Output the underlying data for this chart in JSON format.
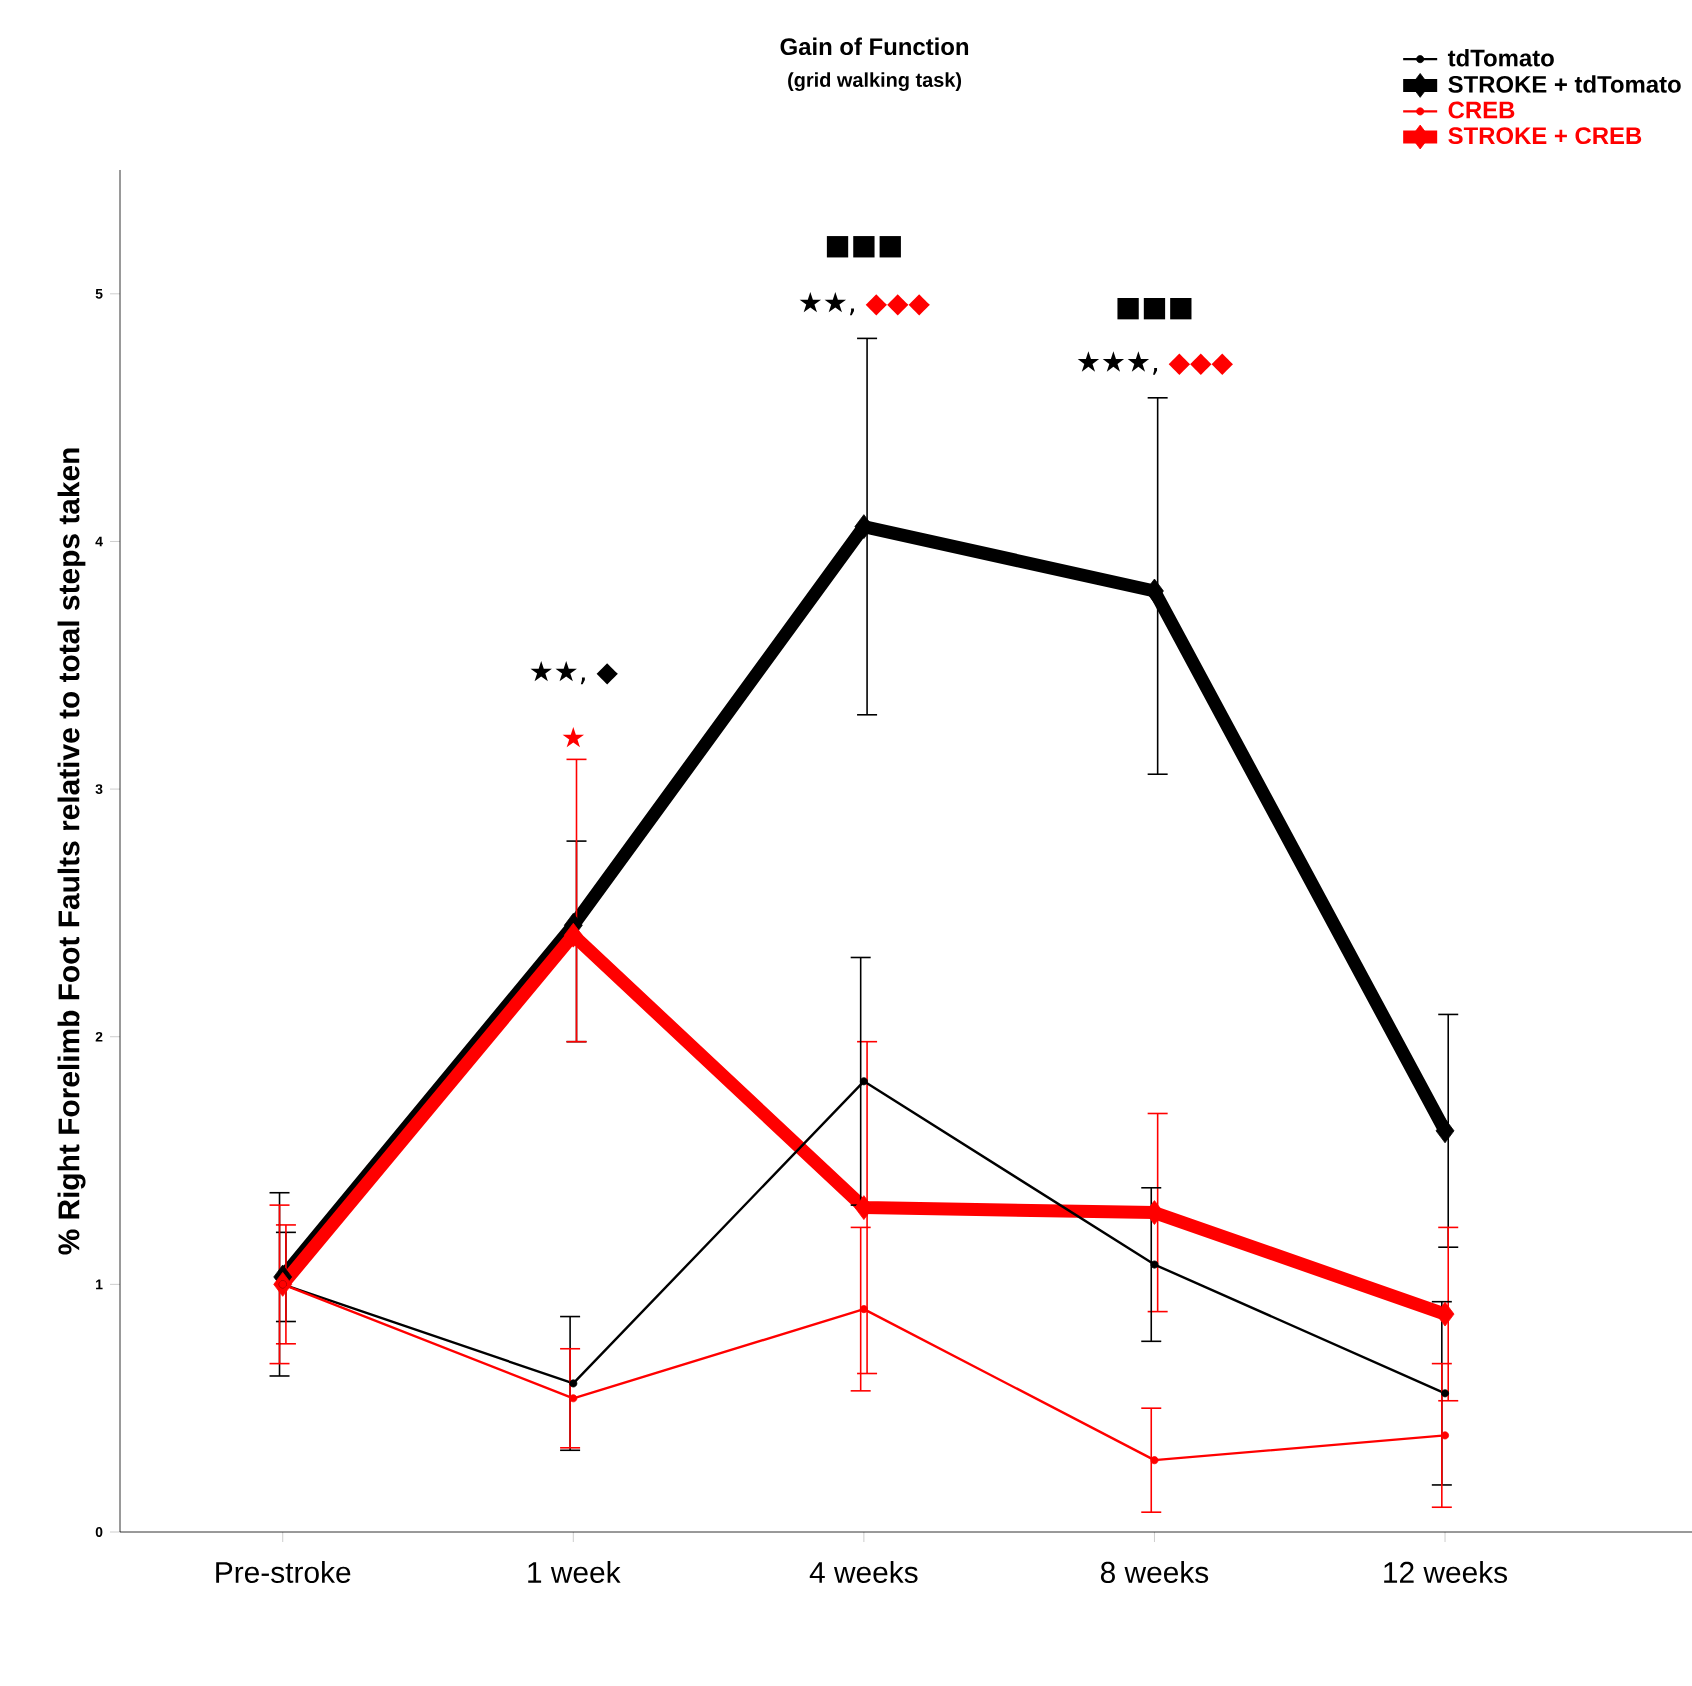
{
  "chart_data": {
    "type": "line",
    "title": "Gain of Function",
    "subtitle": "(grid walking task)",
    "ylabel": "% Right Forelimb Foot Faults relative to total steps taken",
    "categories": [
      "Pre-stroke",
      "1 week",
      "4 weeks",
      "8 weeks",
      "12 weeks"
    ],
    "ylim": [
      0,
      5.5
    ],
    "yticks": [
      0,
      1,
      2,
      3,
      4,
      5
    ],
    "legend": "top right",
    "series": [
      {
        "name": "tdTomato",
        "color": "#000000",
        "marker": "circle",
        "values": [
          1.0,
          0.6,
          1.82,
          1.08,
          0.56
        ],
        "errors": [
          0.37,
          0.27,
          0.5,
          0.31,
          0.37
        ]
      },
      {
        "name": "STROKE + tdTomato",
        "color": "#000000",
        "marker": "diamond",
        "values": [
          1.03,
          2.45,
          4.06,
          3.8,
          1.62
        ],
        "errors": [
          0.18,
          [
            1.98,
            2.79
          ],
          [
            3.3,
            4.82
          ],
          [
            3.06,
            4.58
          ],
          0.47
        ]
      },
      {
        "name": "CREB",
        "color": "#ff0000",
        "marker": "circle",
        "values": [
          1.0,
          0.54,
          0.9,
          0.29,
          0.39
        ],
        "errors": [
          0.32,
          0.2,
          0.33,
          0.21,
          0.29
        ]
      },
      {
        "name": "STROKE + CREB",
        "color": "#ff0000",
        "marker": "diamond",
        "values": [
          1.0,
          2.41,
          1.31,
          1.29,
          0.88
        ],
        "errors": [
          0.24,
          [
            1.98,
            3.12
          ],
          0.67,
          0.4,
          0.35
        ]
      }
    ],
    "annotations": [
      "★★, ",
      "◆",
      "★",
      "■■■",
      "★★, ",
      "◆◆◆",
      "■■■",
      "★★★, ",
      "◆◆◆"
    ]
  }
}
